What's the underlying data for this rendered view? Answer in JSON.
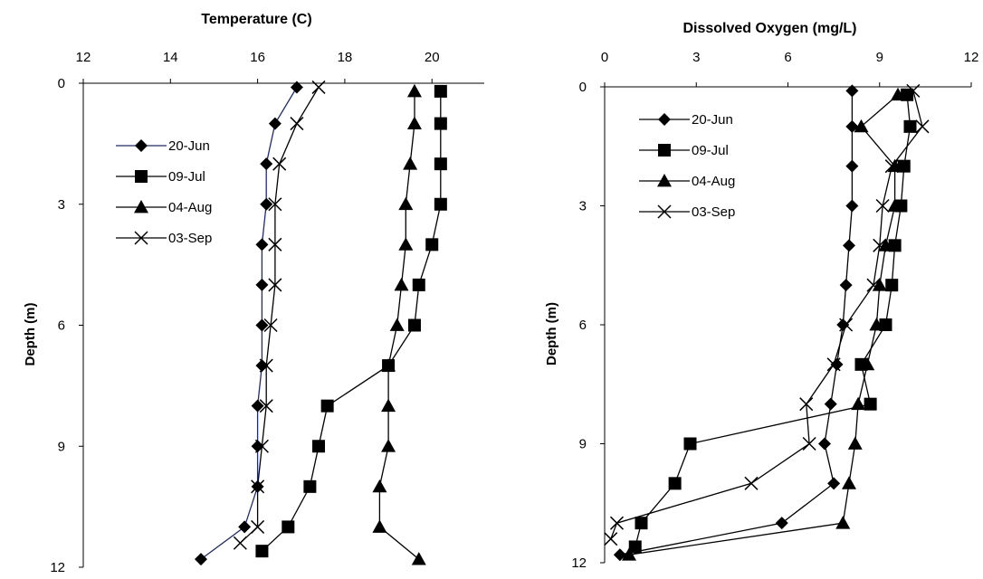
{
  "chart_data": [
    {
      "type": "line",
      "title": "Temperature (C)",
      "xlabel": "",
      "ylabel": "Depth (m)",
      "x_axis_position": "top",
      "y_axis_inverted": true,
      "xlim": [
        12,
        21.2
      ],
      "ylim": [
        0,
        12
      ],
      "x_ticks": [
        "12",
        "14",
        "16",
        "18",
        "20"
      ],
      "y_ticks": [
        "0",
        "3",
        "6",
        "9",
        "12"
      ],
      "legend_placement": "top-left",
      "series": [
        {
          "name": "20-Jun",
          "marker": "diamond",
          "color": "#1f2a78",
          "x": [
            16.9,
            16.4,
            16.2,
            16.2,
            16.1,
            16.1,
            16.1,
            16.1,
            16.0,
            16.0,
            16.0,
            15.7,
            14.7
          ],
          "y": [
            0.1,
            1,
            2,
            3,
            4,
            5,
            6,
            7,
            8,
            9,
            10,
            11,
            11.8
          ]
        },
        {
          "name": "09-Jul",
          "marker": "square",
          "color": "#000000",
          "x": [
            20.2,
            20.2,
            20.2,
            20.2,
            20.0,
            19.7,
            19.6,
            19.0,
            17.6,
            17.4,
            17.2,
            16.7,
            16.1
          ],
          "y": [
            0.2,
            1,
            2,
            3,
            4,
            5,
            6,
            7,
            8,
            9,
            10,
            11,
            11.6
          ]
        },
        {
          "name": "04-Aug",
          "marker": "triangle",
          "color": "#000000",
          "x": [
            19.6,
            19.6,
            19.5,
            19.4,
            19.4,
            19.3,
            19.2,
            19.0,
            19.0,
            19.0,
            18.8,
            18.8,
            19.7
          ],
          "y": [
            0.2,
            1,
            2,
            3,
            4,
            5,
            6,
            7,
            8,
            9,
            10,
            11,
            11.8
          ]
        },
        {
          "name": "03-Sep",
          "marker": "x",
          "color": "#000000",
          "x": [
            17.4,
            16.9,
            16.5,
            16.4,
            16.4,
            16.4,
            16.3,
            16.2,
            16.2,
            16.1,
            16.0,
            16.0,
            15.6
          ],
          "y": [
            0.1,
            1,
            2,
            3,
            4,
            5,
            6,
            7,
            8,
            9,
            10,
            11,
            11.4
          ]
        }
      ]
    },
    {
      "type": "line",
      "title": "Dissolved Oxygen (mg/L)",
      "xlabel": "",
      "ylabel": "Depth (m)",
      "x_axis_position": "top",
      "y_axis_inverted": true,
      "xlim": [
        0,
        12
      ],
      "ylim": [
        0,
        12
      ],
      "x_ticks": [
        "0",
        "3",
        "6",
        "9",
        "12"
      ],
      "y_ticks": [
        "0",
        "3",
        "6",
        "9",
        "12"
      ],
      "legend_placement": "top-left",
      "series": [
        {
          "name": "20-Jun",
          "marker": "diamond",
          "color": "#000000",
          "x": [
            8.1,
            8.1,
            8.1,
            8.1,
            8.0,
            7.9,
            7.8,
            7.6,
            7.4,
            7.2,
            7.5,
            5.8,
            0.5
          ],
          "y": [
            0.1,
            1,
            2,
            3,
            4,
            5,
            6,
            7,
            8,
            9,
            10,
            11,
            11.8
          ]
        },
        {
          "name": "09-Jul",
          "marker": "square",
          "color": "#000000",
          "x": [
            9.9,
            10.0,
            9.8,
            9.7,
            9.5,
            9.4,
            9.2,
            8.4,
            8.7,
            2.8,
            2.3,
            1.2,
            1.0
          ],
          "y": [
            0.2,
            1,
            2,
            3,
            4,
            5,
            6,
            7,
            8,
            9,
            10,
            11,
            11.6
          ]
        },
        {
          "name": "04-Aug",
          "marker": "triangle",
          "color": "#000000",
          "x": [
            9.6,
            8.4,
            9.5,
            9.5,
            9.2,
            9.0,
            8.9,
            8.6,
            8.3,
            8.2,
            8.0,
            7.8,
            0.8
          ],
          "y": [
            0.2,
            1,
            2,
            3,
            4,
            5,
            6,
            7,
            8,
            9,
            10,
            11,
            11.8
          ]
        },
        {
          "name": "03-Sep",
          "marker": "x",
          "color": "#000000",
          "x": [
            10.1,
            10.4,
            9.4,
            9.1,
            9.0,
            8.8,
            7.9,
            7.5,
            6.6,
            6.7,
            4.8,
            0.4,
            0.2
          ],
          "y": [
            0.1,
            1,
            2,
            3,
            4,
            5,
            6,
            7,
            8,
            9,
            10,
            11,
            11.4
          ]
        }
      ]
    }
  ]
}
